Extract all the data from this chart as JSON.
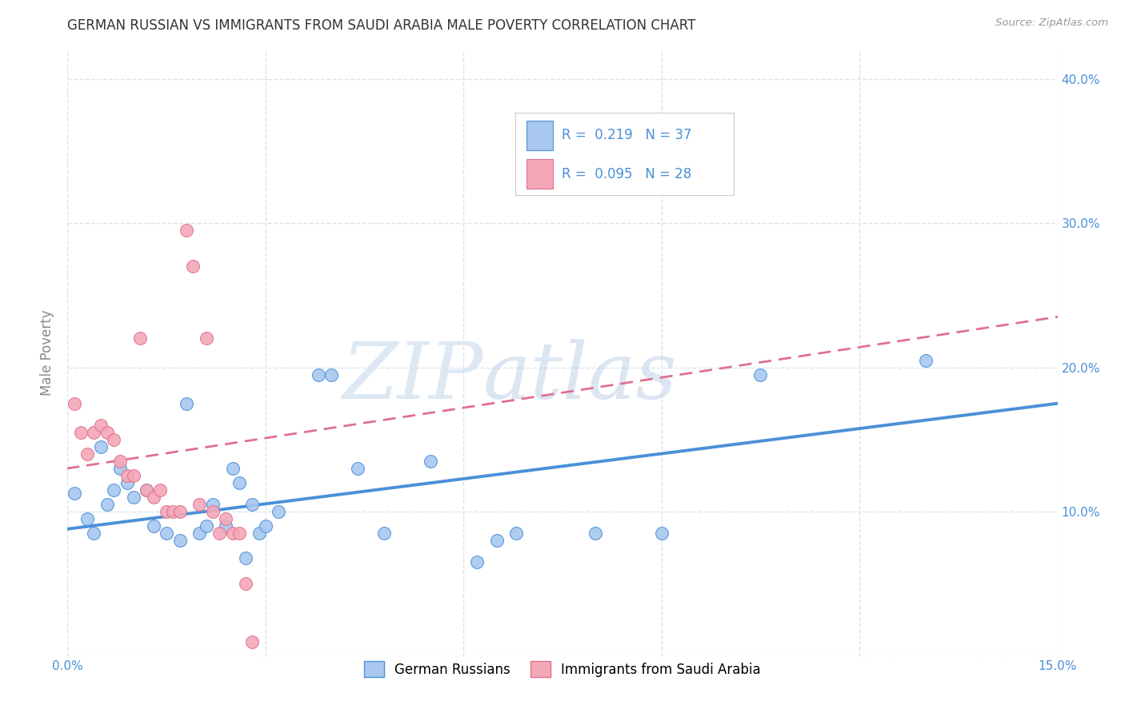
{
  "title": "GERMAN RUSSIAN VS IMMIGRANTS FROM SAUDI ARABIA MALE POVERTY CORRELATION CHART",
  "source": "Source: ZipAtlas.com",
  "ylabel": "Male Poverty",
  "xlim": [
    0.0,
    0.15
  ],
  "ylim": [
    0.0,
    0.42
  ],
  "xticks": [
    0.0,
    0.03,
    0.06,
    0.09,
    0.12,
    0.15
  ],
  "xtick_labels": [
    "0.0%",
    "",
    "",
    "",
    "",
    "15.0%"
  ],
  "yticks": [
    0.0,
    0.1,
    0.2,
    0.3,
    0.4
  ],
  "ytick_labels_left": [
    "",
    "",
    "",
    "",
    ""
  ],
  "ytick_labels_right": [
    "",
    "10.0%",
    "20.0%",
    "30.0%",
    "40.0%"
  ],
  "blue_R": "0.219",
  "blue_N": "37",
  "pink_R": "0.095",
  "pink_N": "28",
  "blue_color": "#a8c8f0",
  "pink_color": "#f4a8b8",
  "blue_line_color": "#4a90d9",
  "pink_line_color": "#e07090",
  "blue_scatter": [
    [
      0.001,
      0.113
    ],
    [
      0.003,
      0.095
    ],
    [
      0.004,
      0.085
    ],
    [
      0.005,
      0.145
    ],
    [
      0.006,
      0.105
    ],
    [
      0.007,
      0.115
    ],
    [
      0.008,
      0.13
    ],
    [
      0.009,
      0.12
    ],
    [
      0.01,
      0.11
    ],
    [
      0.012,
      0.115
    ],
    [
      0.013,
      0.09
    ],
    [
      0.015,
      0.085
    ],
    [
      0.017,
      0.08
    ],
    [
      0.018,
      0.175
    ],
    [
      0.02,
      0.085
    ],
    [
      0.021,
      0.09
    ],
    [
      0.022,
      0.105
    ],
    [
      0.024,
      0.09
    ],
    [
      0.025,
      0.13
    ],
    [
      0.026,
      0.12
    ],
    [
      0.027,
      0.068
    ],
    [
      0.028,
      0.105
    ],
    [
      0.029,
      0.085
    ],
    [
      0.03,
      0.09
    ],
    [
      0.032,
      0.1
    ],
    [
      0.038,
      0.195
    ],
    [
      0.04,
      0.195
    ],
    [
      0.044,
      0.13
    ],
    [
      0.048,
      0.085
    ],
    [
      0.055,
      0.135
    ],
    [
      0.062,
      0.065
    ],
    [
      0.065,
      0.08
    ],
    [
      0.068,
      0.085
    ],
    [
      0.08,
      0.085
    ],
    [
      0.09,
      0.085
    ],
    [
      0.105,
      0.195
    ],
    [
      0.13,
      0.205
    ]
  ],
  "pink_scatter": [
    [
      0.001,
      0.175
    ],
    [
      0.002,
      0.155
    ],
    [
      0.003,
      0.14
    ],
    [
      0.004,
      0.155
    ],
    [
      0.005,
      0.16
    ],
    [
      0.006,
      0.155
    ],
    [
      0.007,
      0.15
    ],
    [
      0.008,
      0.135
    ],
    [
      0.009,
      0.125
    ],
    [
      0.01,
      0.125
    ],
    [
      0.011,
      0.22
    ],
    [
      0.012,
      0.115
    ],
    [
      0.013,
      0.11
    ],
    [
      0.014,
      0.115
    ],
    [
      0.015,
      0.1
    ],
    [
      0.016,
      0.1
    ],
    [
      0.017,
      0.1
    ],
    [
      0.018,
      0.295
    ],
    [
      0.019,
      0.27
    ],
    [
      0.02,
      0.105
    ],
    [
      0.021,
      0.22
    ],
    [
      0.022,
      0.1
    ],
    [
      0.023,
      0.085
    ],
    [
      0.024,
      0.095
    ],
    [
      0.025,
      0.085
    ],
    [
      0.026,
      0.085
    ],
    [
      0.027,
      0.05
    ],
    [
      0.028,
      0.01
    ]
  ],
  "blue_trend_x": [
    0.0,
    0.15
  ],
  "blue_trend_y": [
    0.088,
    0.175
  ],
  "pink_trend_x": [
    0.0,
    0.15
  ],
  "pink_trend_y": [
    0.13,
    0.235
  ],
  "watermark_zip": "ZIP",
  "watermark_atlas": "atlas",
  "legend_blue_label": "German Russians",
  "legend_pink_label": "Immigrants from Saudi Arabia",
  "background_color": "#ffffff",
  "grid_color": "#d8e4f0"
}
